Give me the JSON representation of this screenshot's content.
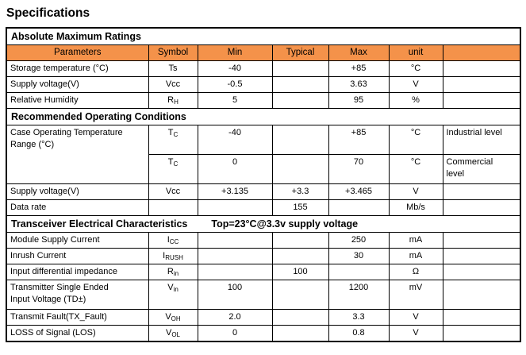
{
  "heading": "Specifications",
  "accent_color": "#F4924A",
  "table": {
    "headers": [
      "Parameters",
      "Symbol",
      "Min",
      "Typical",
      "Max",
      "unit",
      ""
    ],
    "sections": [
      {
        "title": "Absolute Maximum Ratings",
        "subtitle": "",
        "rows": [
          {
            "param": "Storage temperature (°C)",
            "sym": "Ts",
            "sub": "",
            "min": "-40",
            "typ": "",
            "max": "+85",
            "unit": "°C",
            "note": ""
          },
          {
            "param": "Supply voltage(V)",
            "sym": "Vcc",
            "sub": "",
            "min": "-0.5",
            "typ": "",
            "max": "3.63",
            "unit": "V",
            "note": ""
          },
          {
            "param": "Relative Humidity",
            "sym": "R",
            "sub": "H",
            "min": "5",
            "typ": "",
            "max": "95",
            "unit": "%",
            "note": ""
          }
        ]
      },
      {
        "title": "Recommended Operating Conditions",
        "subtitle": "",
        "rows": [
          {
            "param": "Case Operating Temperature\nRange (°C)",
            "param_rowspan": 2,
            "sym": "T",
            "sub": "C",
            "min": "-40",
            "typ": "",
            "max": "+85",
            "unit": "°C",
            "note": "Industrial level"
          },
          {
            "param": null,
            "sym": "T",
            "sub": "C",
            "min": "0",
            "typ": "",
            "max": "70",
            "unit": "°C",
            "note": "Commercial\nlevel"
          },
          {
            "param": "Supply voltage(V)",
            "sym": "Vcc",
            "sub": "",
            "min": "+3.135",
            "typ": "+3.3",
            "max": "+3.465",
            "unit": "V",
            "note": ""
          },
          {
            "param": "Data rate",
            "sym": "",
            "sub": "",
            "min": "",
            "typ": "155",
            "max": "",
            "unit": "Mb/s",
            "note": ""
          }
        ]
      },
      {
        "title": "Transceiver Electrical Characteristics",
        "subtitle": "Top=23°C@3.3v supply voltage",
        "rows": [
          {
            "param": "Module Supply Current",
            "sym": "I",
            "sub": "CC",
            "min": "",
            "typ": "",
            "max": "250",
            "unit": "mA",
            "note": ""
          },
          {
            "param": "Inrush Current",
            "sym": "I",
            "sub": "RUSH",
            "min": "",
            "typ": "",
            "max": "30",
            "unit": "mA",
            "note": ""
          },
          {
            "param": "Input differential impedance",
            "sym": "R",
            "sub": "in",
            "min": "",
            "typ": "100",
            "max": "",
            "unit": "Ω",
            "note": ""
          },
          {
            "param": "Transmitter Single Ended\nInput Voltage (TD±)",
            "sym": "V",
            "sub": "in",
            "min": "100",
            "typ": "",
            "max": "1200",
            "unit": "mV",
            "note": ""
          },
          {
            "param": "Transmit Fault(TX_Fault)",
            "sym": "V",
            "sub": "OH",
            "min": "2.0",
            "typ": "",
            "max": "3.3",
            "unit": "V",
            "note": ""
          },
          {
            "param": "LOSS of Signal (LOS)",
            "sym": "V",
            "sub": "OL",
            "min": "0",
            "typ": "",
            "max": "0.8",
            "unit": "V",
            "note": ""
          }
        ]
      }
    ]
  }
}
